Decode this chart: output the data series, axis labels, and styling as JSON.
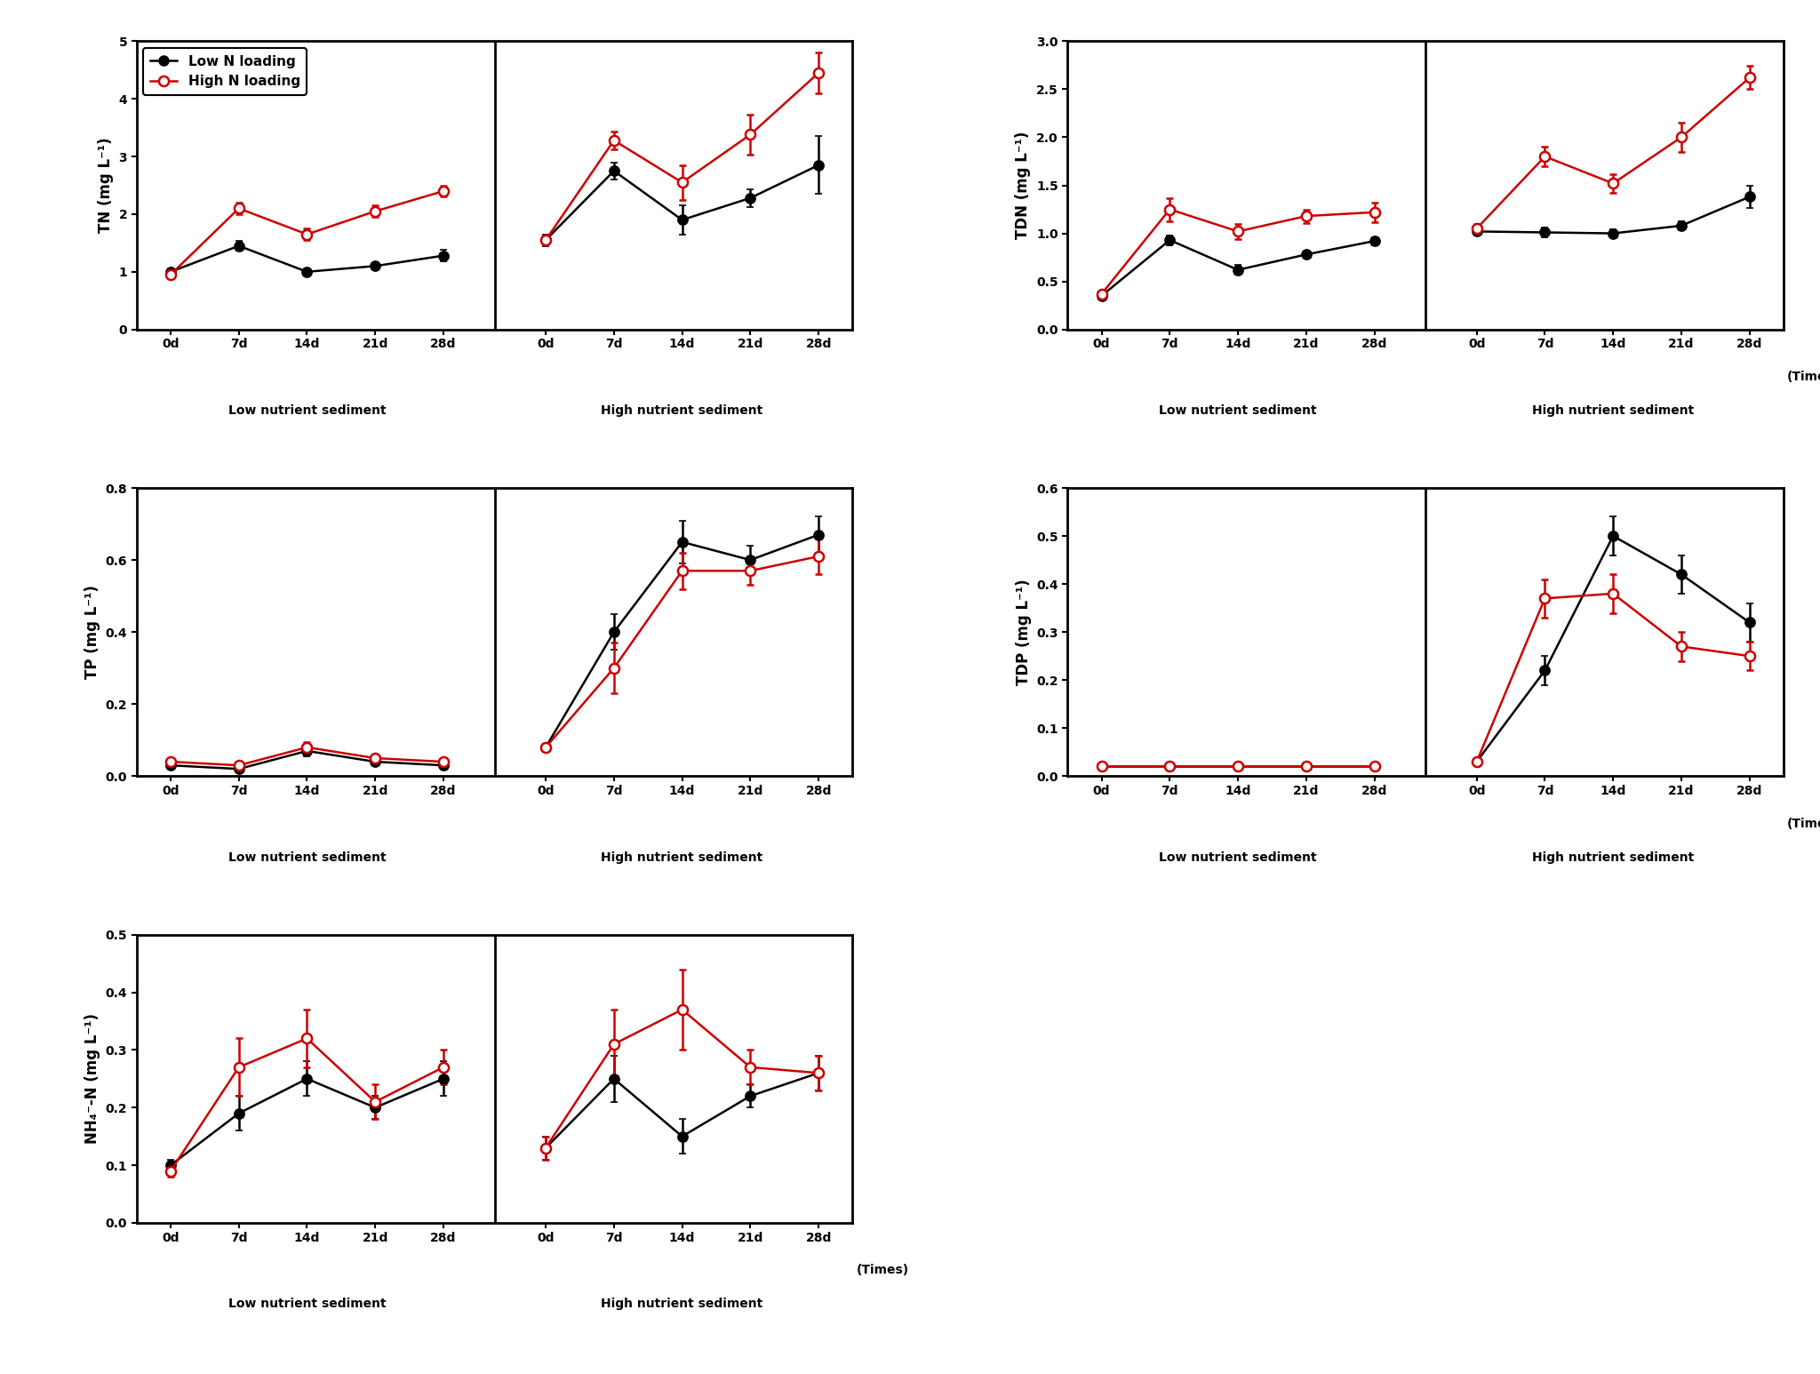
{
  "times": [
    0,
    7,
    14,
    21,
    28
  ],
  "x_labels": [
    "0d",
    "7d",
    "14d",
    "21d",
    "28d"
  ],
  "low_nutrient_label": "Low nutrient sediment",
  "high_nutrient_label": "High nutrient sediment",
  "times_label": "(Times)",
  "legend_low": "Low N loading",
  "legend_high": "High N loading",
  "black_color": "#000000",
  "red_color": "#cc0000",
  "TN": {
    "ylabel": "TN (mg L⁻¹)",
    "ylim": [
      0.0,
      5.0
    ],
    "yticks": [
      0.0,
      1.0,
      2.0,
      3.0,
      4.0,
      5.0
    ],
    "low_black": [
      1.0,
      1.45,
      1.0,
      1.1,
      1.28
    ],
    "low_black_err": [
      0.05,
      0.08,
      0.05,
      0.05,
      0.1
    ],
    "low_red": [
      0.95,
      2.1,
      1.65,
      2.05,
      2.4
    ],
    "low_red_err": [
      0.05,
      0.1,
      0.1,
      0.1,
      0.1
    ],
    "high_black": [
      1.55,
      2.75,
      1.9,
      2.28,
      2.85
    ],
    "high_black_err": [
      0.1,
      0.15,
      0.25,
      0.15,
      0.5
    ],
    "high_red": [
      1.55,
      3.28,
      2.55,
      3.38,
      4.45
    ],
    "high_red_err": [
      0.05,
      0.15,
      0.3,
      0.35,
      0.35
    ]
  },
  "TDN": {
    "ylabel": "TDN (mg L⁻¹)",
    "ylim": [
      0.0,
      3.0
    ],
    "yticks": [
      0.0,
      0.5,
      1.0,
      1.5,
      2.0,
      2.5,
      3.0
    ],
    "low_black": [
      0.35,
      0.93,
      0.62,
      0.78,
      0.92
    ],
    "low_black_err": [
      0.03,
      0.05,
      0.05,
      0.03,
      0.04
    ],
    "low_red": [
      0.37,
      1.25,
      1.02,
      1.18,
      1.22
    ],
    "low_red_err": [
      0.03,
      0.12,
      0.08,
      0.07,
      0.1
    ],
    "high_black": [
      1.02,
      1.01,
      1.0,
      1.08,
      1.38
    ],
    "high_black_err": [
      0.04,
      0.05,
      0.04,
      0.05,
      0.12
    ],
    "high_red": [
      1.05,
      1.8,
      1.52,
      2.0,
      2.62
    ],
    "high_red_err": [
      0.05,
      0.1,
      0.1,
      0.15,
      0.12
    ]
  },
  "TP": {
    "ylabel": "TP (mg L⁻¹)",
    "ylim": [
      0.0,
      0.8
    ],
    "yticks": [
      0.0,
      0.2,
      0.4,
      0.6,
      0.8
    ],
    "low_black": [
      0.03,
      0.02,
      0.07,
      0.04,
      0.03
    ],
    "low_black_err": [
      0.005,
      0.005,
      0.015,
      0.005,
      0.005
    ],
    "low_red": [
      0.04,
      0.03,
      0.08,
      0.05,
      0.04
    ],
    "low_red_err": [
      0.005,
      0.005,
      0.015,
      0.005,
      0.005
    ],
    "high_black": [
      0.08,
      0.4,
      0.65,
      0.6,
      0.67
    ],
    "high_black_err": [
      0.01,
      0.05,
      0.06,
      0.04,
      0.05
    ],
    "high_red": [
      0.08,
      0.3,
      0.57,
      0.57,
      0.61
    ],
    "high_red_err": [
      0.01,
      0.07,
      0.05,
      0.04,
      0.05
    ]
  },
  "TDP": {
    "ylabel": "TDP (mg L⁻¹)",
    "ylim": [
      0.0,
      0.6
    ],
    "yticks": [
      0.0,
      0.1,
      0.2,
      0.3,
      0.4,
      0.5,
      0.6
    ],
    "low_black": [
      0.02,
      0.02,
      0.02,
      0.02,
      0.02
    ],
    "low_black_err": [
      0.003,
      0.003,
      0.003,
      0.003,
      0.003
    ],
    "low_red": [
      0.02,
      0.02,
      0.02,
      0.02,
      0.02
    ],
    "low_red_err": [
      0.003,
      0.003,
      0.003,
      0.003,
      0.003
    ],
    "high_black": [
      0.03,
      0.22,
      0.5,
      0.42,
      0.32
    ],
    "high_black_err": [
      0.005,
      0.03,
      0.04,
      0.04,
      0.04
    ],
    "high_red": [
      0.03,
      0.37,
      0.38,
      0.27,
      0.25
    ],
    "high_red_err": [
      0.005,
      0.04,
      0.04,
      0.03,
      0.03
    ]
  },
  "NH4N": {
    "ylabel": "NH₄⁻-N (mg L⁻¹)",
    "ylim": [
      0.0,
      0.5
    ],
    "yticks": [
      0.0,
      0.1,
      0.2,
      0.3,
      0.4,
      0.5
    ],
    "low_black": [
      0.1,
      0.19,
      0.25,
      0.2,
      0.25
    ],
    "low_black_err": [
      0.01,
      0.03,
      0.03,
      0.02,
      0.03
    ],
    "low_red": [
      0.09,
      0.27,
      0.32,
      0.21,
      0.27
    ],
    "low_red_err": [
      0.01,
      0.05,
      0.05,
      0.03,
      0.03
    ],
    "high_black": [
      0.13,
      0.25,
      0.15,
      0.22,
      0.26
    ],
    "high_black_err": [
      0.02,
      0.04,
      0.03,
      0.02,
      0.03
    ],
    "high_red": [
      0.13,
      0.31,
      0.37,
      0.27,
      0.26
    ],
    "high_red_err": [
      0.02,
      0.06,
      0.07,
      0.03,
      0.03
    ]
  }
}
